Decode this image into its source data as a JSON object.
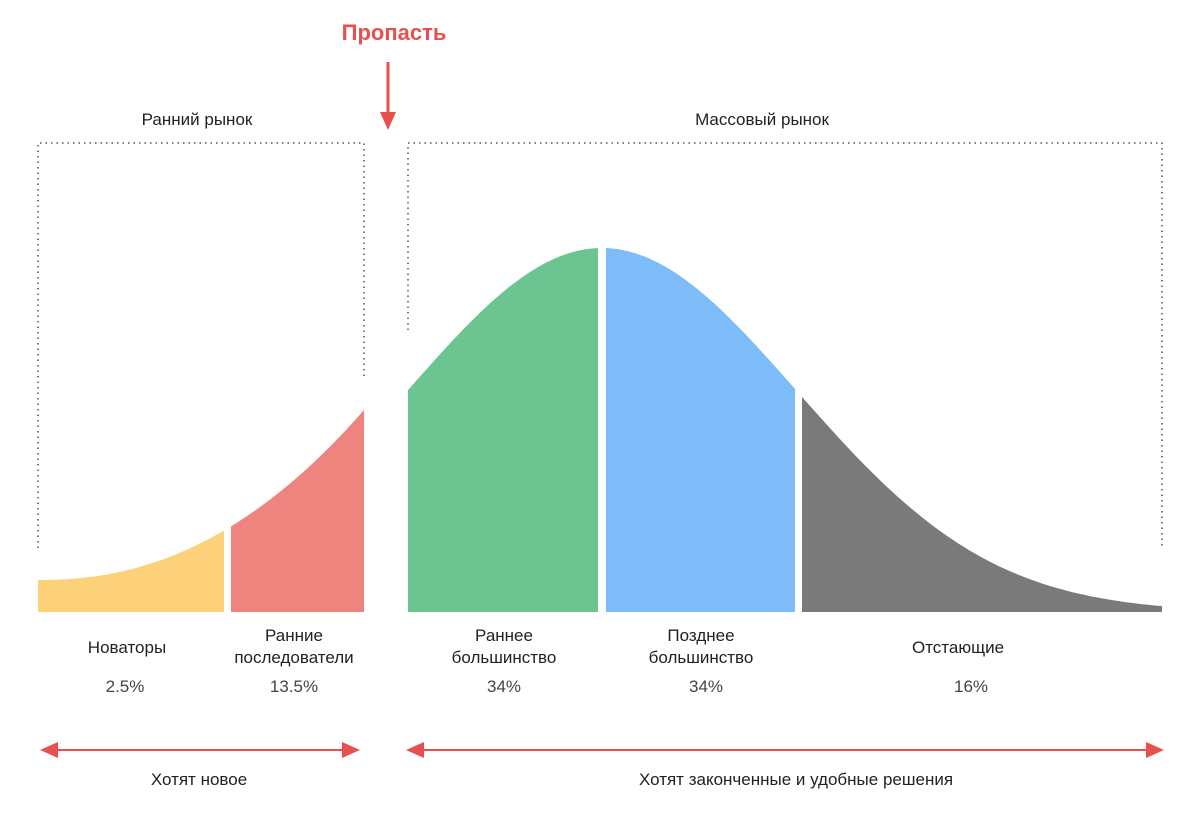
{
  "chasm_label": "Пропасть",
  "markets": {
    "early": "Ранний рынок",
    "mass": "Массовый рынок"
  },
  "segments": [
    {
      "name": "Новаторы",
      "percent": "2.5%",
      "share": 2.5,
      "color": "#fcd17a"
    },
    {
      "name": "Ранние последователи",
      "line1": "Ранние",
      "line2": "последователи",
      "percent": "13.5%",
      "share": 13.5,
      "color": "#ef837d"
    },
    {
      "name": "Раннее большинство",
      "line1": "Раннее",
      "line2": "большинство",
      "percent": "34%",
      "share": 34,
      "color": "#6cc590"
    },
    {
      "name": "Позднее большинство",
      "line1": "Позднее",
      "line2": "большинство",
      "percent": "34%",
      "share": 34,
      "color": "#7dbcf8"
    },
    {
      "name": "Отстающие",
      "percent": "16%",
      "share": 16,
      "color": "#7a7a7a"
    }
  ],
  "bottom_notes": {
    "early": "Хотят новое",
    "mass": "Хотят законченные и удобные решения"
  },
  "colors": {
    "accent": "#e8504d",
    "dotted": "#555555"
  }
}
